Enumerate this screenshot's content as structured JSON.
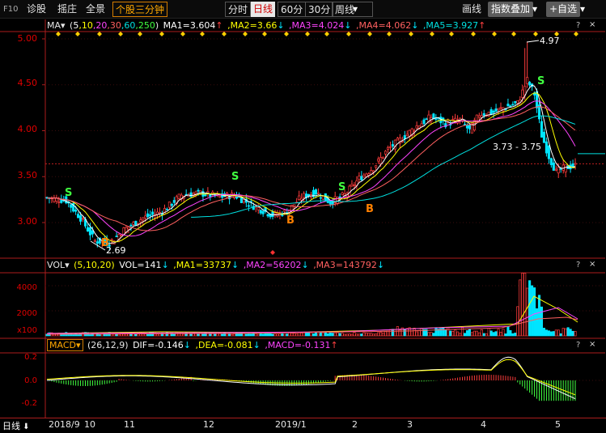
{
  "toolbar": {
    "f10": "F10",
    "diagnose": "诊股",
    "hook": "摇庄",
    "panorama": "全景",
    "three_min": "个股三分钟",
    "timeshare": "分时",
    "daily": "日线",
    "min60": "60分",
    "min30": "30分",
    "weekly": "周线",
    "weekly_arrow": "▾",
    "draw_line": "画线",
    "overlay": "指数叠加",
    "add_self": "+自选"
  },
  "ma_line": {
    "name": "MA▾",
    "params_open": "(",
    "p1": "5",
    "p2": ",10",
    "p3": ",20",
    "p4": ",30",
    "p5": ",60",
    "p6": ",250",
    "params_close": ")",
    "ma1": "MA1=3.604",
    "ma1_arrow": "↑",
    "ma2": ",MA2=3.66",
    "ma2_arrow": "↓",
    "ma3": ",MA3=4.024",
    "ma3_arrow": "↓",
    "ma4": ",MA4=4.062",
    "ma4_arrow": "↓",
    "ma5": ",MA5=3.927",
    "ma5_arrow": "↑"
  },
  "vol_line": {
    "name": "VOL▾",
    "params": "(5,10,20)",
    "vol": "VOL=141",
    "vol_arrow": "↓",
    "ma1": ",MA1=33737",
    "ma1_arrow": "↓",
    "ma2": ",MA2=56202",
    "ma2_arrow": "↓",
    "ma3": ",MA3=143792",
    "ma3_arrow": "↓"
  },
  "macd_line": {
    "name": "MACD▾",
    "params": "(26,12,9)",
    "dif": "DIF=-0.146",
    "dif_arrow": "↓",
    "dea": ",DEA=-0.081",
    "dea_arrow": "↓",
    "macd": ",MACD=-0.131",
    "macd_arrow": "↑"
  },
  "qmarks": [
    "?",
    "×"
  ],
  "price_axis": [
    "5.00",
    "4.50",
    "4.00",
    "3.50",
    "3.00"
  ],
  "vol_axis": [
    "4000",
    "2000",
    "x100"
  ],
  "macd_axis": [
    "0.2",
    "0.0",
    "-0.2"
  ],
  "x_axis": [
    "2018/9",
    "10",
    "11",
    "12",
    "2019/1",
    "2",
    "3",
    "4",
    "5"
  ],
  "period_label": "日线",
  "annotations": {
    "high": "4.97",
    "low": "2.69",
    "range": "3.73 - 3.75",
    "sell": "S",
    "buy": "B"
  },
  "colors": {
    "up": "#ff3c3c",
    "down": "#00e5ff",
    "ma1": "#ffffff",
    "ma2": "#ffff00",
    "ma3": "#ff44ff",
    "ma4": "#ff6060",
    "ma5": "#00e0e0",
    "axis": "#e00000",
    "buy": "#ff8000",
    "sell": "#40ff40"
  }
}
